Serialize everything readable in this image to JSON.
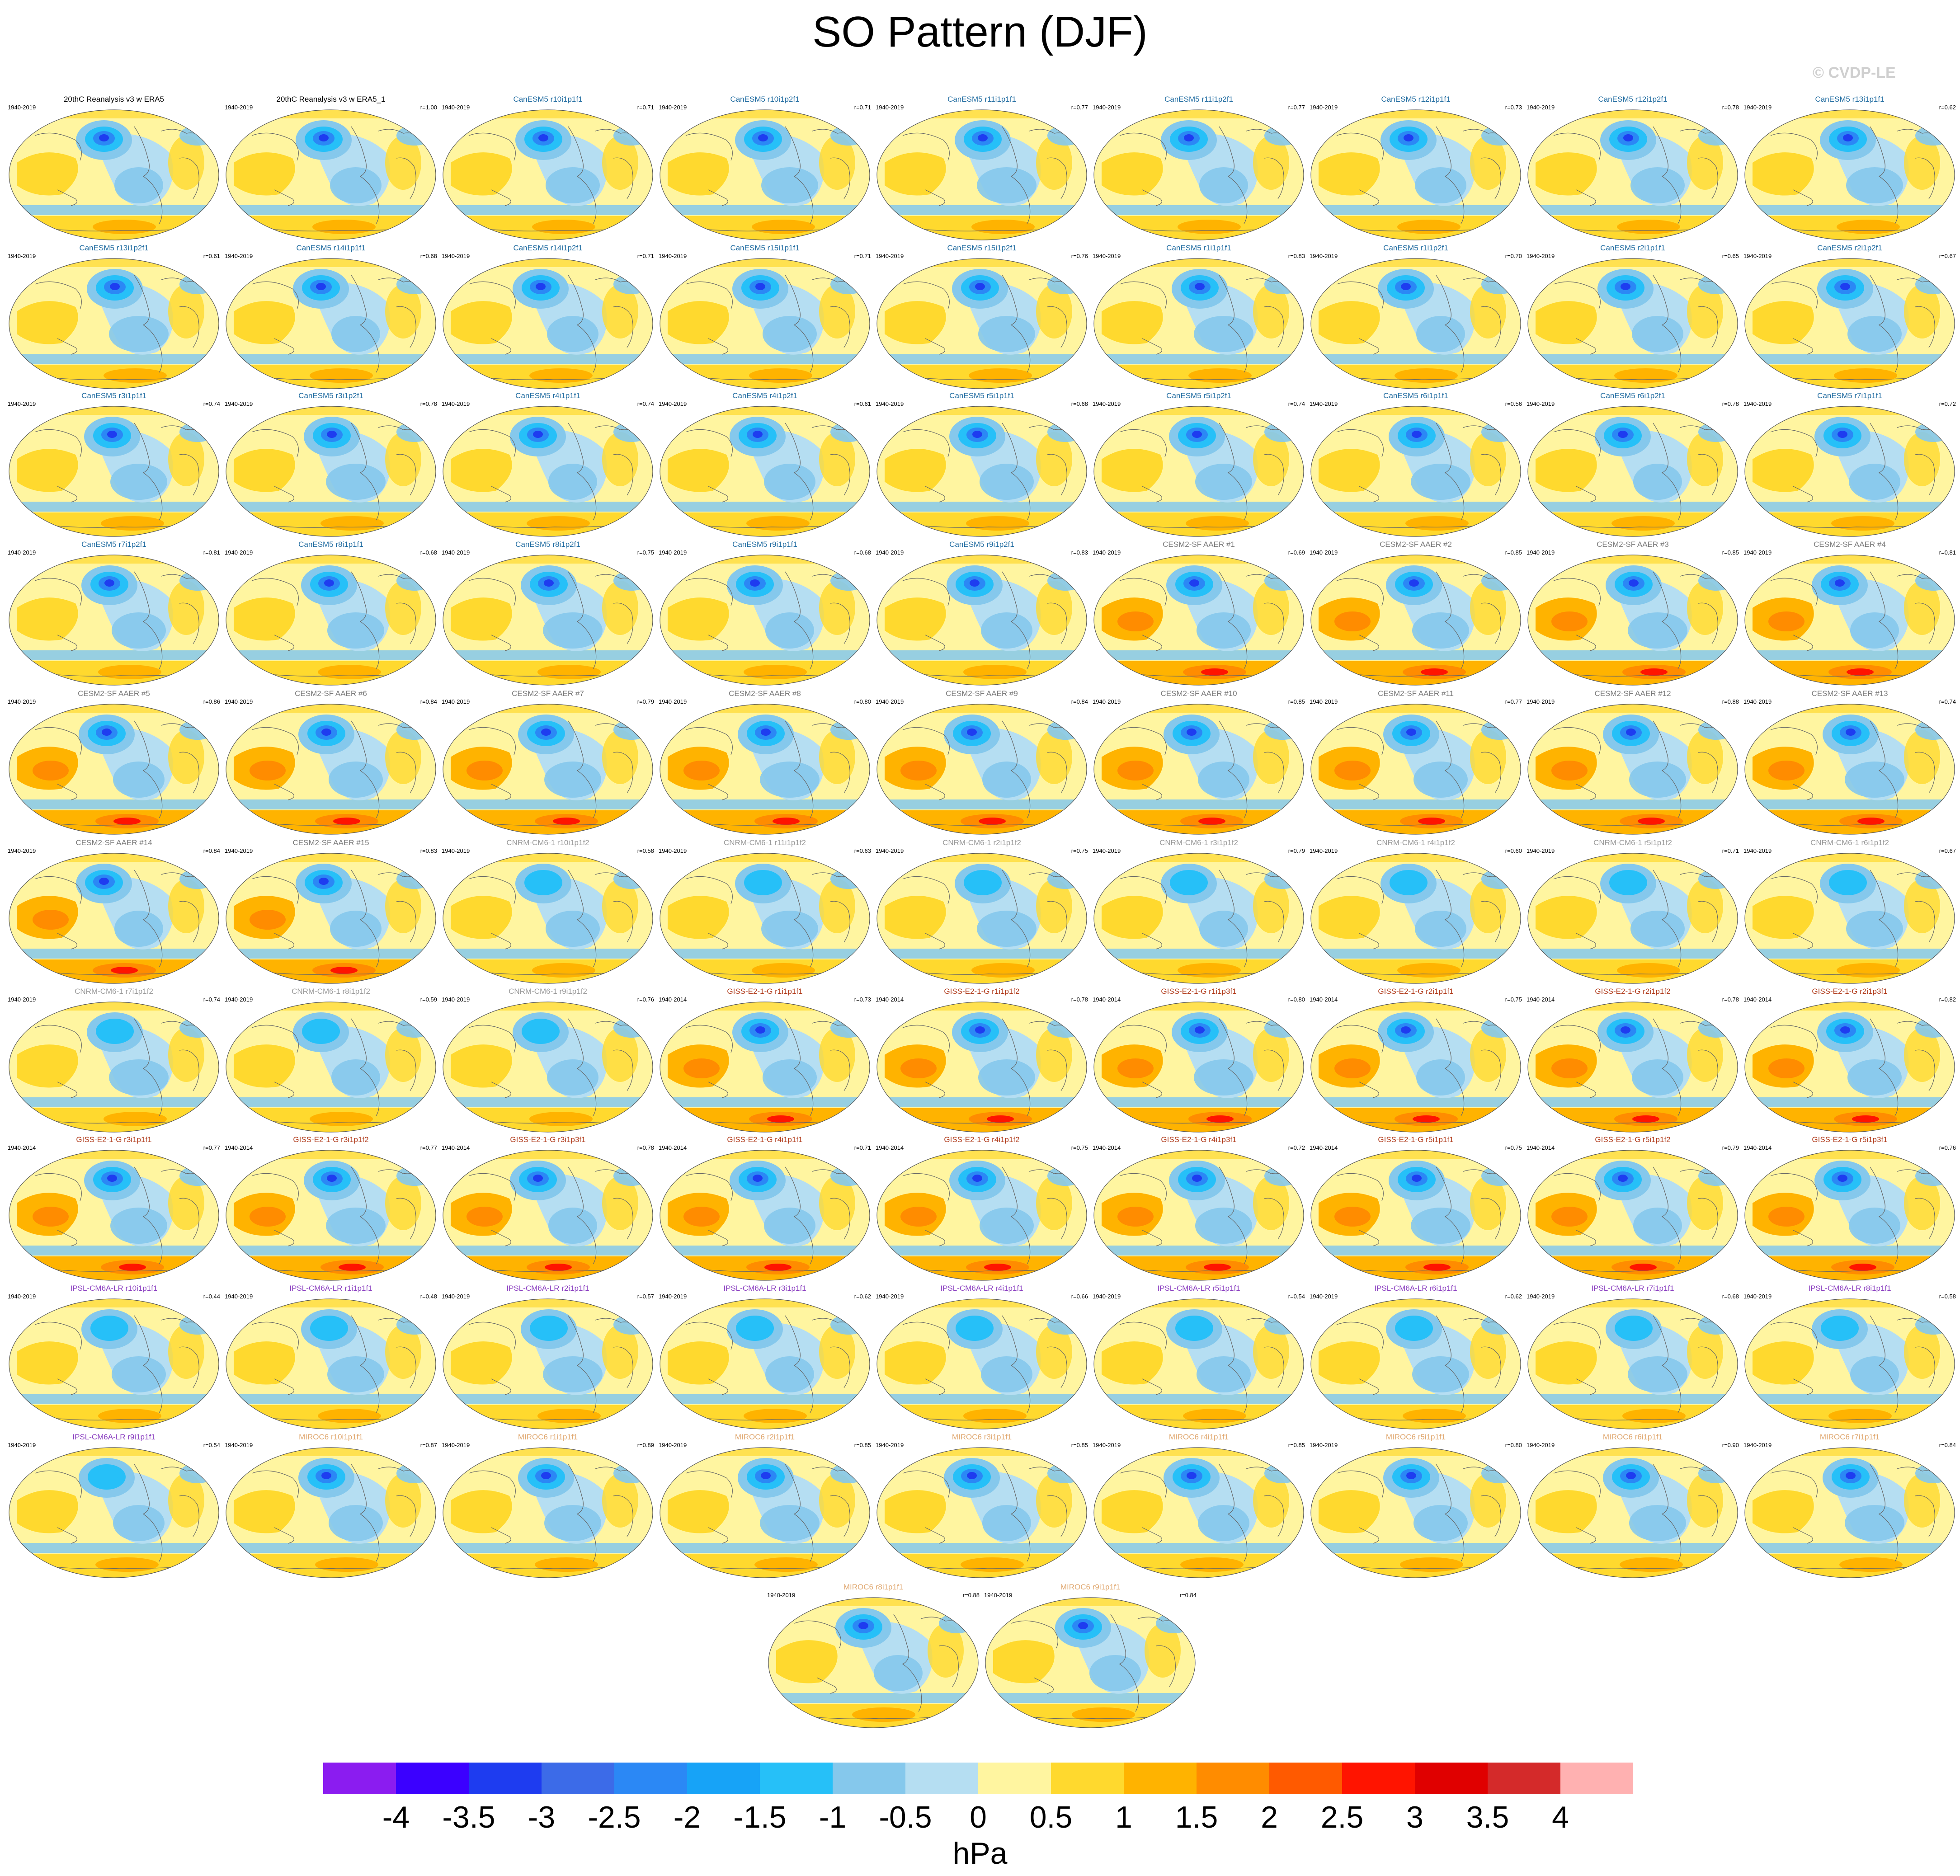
{
  "title": "SO Pattern (DJF)",
  "copyright": "© CVDP-LE",
  "colorbar": {
    "units": "hPa",
    "labels": [
      "-4",
      "-3.5",
      "-3",
      "-2.5",
      "-2",
      "-1.5",
      "-1",
      "-0.5",
      "0",
      "0.5",
      "1",
      "1.5",
      "2",
      "2.5",
      "3",
      "3.5",
      "4"
    ],
    "colors": [
      "#8b1cf0",
      "#3b00ff",
      "#1e3cf0",
      "#3c6be8",
      "#2b88f5",
      "#17a3f7",
      "#26c0f8",
      "#85c8ec",
      "#b5def2",
      "#fff5a0",
      "#ffd92e",
      "#ffb300",
      "#ff8c00",
      "#ff5a00",
      "#ff1400",
      "#e00000",
      "#d42a2a",
      "#ffb1b1"
    ]
  },
  "group_colors": {
    "obs": "#000000",
    "CanESM5": "#1f6ba0",
    "CESM2-SF AAER": "#7a7a7a",
    "CNRM-CM6-1": "#9a9a9a",
    "GISS-E2-1-G": "#b03a1a",
    "IPSL-CM6A-LR": "#8a3ec0",
    "MIROC6": "#e0a870"
  },
  "panels": [
    {
      "title": "20thC Reanalysis v3 w ERA5",
      "group": "obs",
      "years": "1940-2019",
      "corr": ""
    },
    {
      "title": "20thC Reanalysis v3 w ERA5_1",
      "group": "obs",
      "years": "1940-2019",
      "corr": "r=1.00"
    },
    {
      "title": "CanESM5 r10i1p1f1",
      "group": "CanESM5",
      "years": "1940-2019",
      "corr": "r=0.71"
    },
    {
      "title": "CanESM5 r10i1p2f1",
      "group": "CanESM5",
      "years": "1940-2019",
      "corr": "r=0.71"
    },
    {
      "title": "CanESM5 r11i1p1f1",
      "group": "CanESM5",
      "years": "1940-2019",
      "corr": "r=0.77"
    },
    {
      "title": "CanESM5 r11i1p2f1",
      "group": "CanESM5",
      "years": "1940-2019",
      "corr": "r=0.77"
    },
    {
      "title": "CanESM5 r12i1p1f1",
      "group": "CanESM5",
      "years": "1940-2019",
      "corr": "r=0.73"
    },
    {
      "title": "CanESM5 r12i1p2f1",
      "group": "CanESM5",
      "years": "1940-2019",
      "corr": "r=0.78"
    },
    {
      "title": "CanESM5 r13i1p1f1",
      "group": "CanESM5",
      "years": "1940-2019",
      "corr": "r=0.62"
    },
    {
      "title": "CanESM5 r13i1p2f1",
      "group": "CanESM5",
      "years": "1940-2019",
      "corr": "r=0.61"
    },
    {
      "title": "CanESM5 r14i1p1f1",
      "group": "CanESM5",
      "years": "1940-2019",
      "corr": "r=0.68"
    },
    {
      "title": "CanESM5 r14i1p2f1",
      "group": "CanESM5",
      "years": "1940-2019",
      "corr": "r=0.71"
    },
    {
      "title": "CanESM5 r15i1p1f1",
      "group": "CanESM5",
      "years": "1940-2019",
      "corr": "r=0.71"
    },
    {
      "title": "CanESM5 r15i1p2f1",
      "group": "CanESM5",
      "years": "1940-2019",
      "corr": "r=0.76"
    },
    {
      "title": "CanESM5 r1i1p1f1",
      "group": "CanESM5",
      "years": "1940-2019",
      "corr": "r=0.83"
    },
    {
      "title": "CanESM5 r1i1p2f1",
      "group": "CanESM5",
      "years": "1940-2019",
      "corr": "r=0.70"
    },
    {
      "title": "CanESM5 r2i1p1f1",
      "group": "CanESM5",
      "years": "1940-2019",
      "corr": "r=0.65"
    },
    {
      "title": "CanESM5 r2i1p2f1",
      "group": "CanESM5",
      "years": "1940-2019",
      "corr": "r=0.67"
    },
    {
      "title": "CanESM5 r3i1p1f1",
      "group": "CanESM5",
      "years": "1940-2019",
      "corr": "r=0.74"
    },
    {
      "title": "CanESM5 r3i1p2f1",
      "group": "CanESM5",
      "years": "1940-2019",
      "corr": "r=0.78"
    },
    {
      "title": "CanESM5 r4i1p1f1",
      "group": "CanESM5",
      "years": "1940-2019",
      "corr": "r=0.74"
    },
    {
      "title": "CanESM5 r4i1p2f1",
      "group": "CanESM5",
      "years": "1940-2019",
      "corr": "r=0.61"
    },
    {
      "title": "CanESM5 r5i1p1f1",
      "group": "CanESM5",
      "years": "1940-2019",
      "corr": "r=0.68"
    },
    {
      "title": "CanESM5 r5i1p2f1",
      "group": "CanESM5",
      "years": "1940-2019",
      "corr": "r=0.74"
    },
    {
      "title": "CanESM5 r6i1p1f1",
      "group": "CanESM5",
      "years": "1940-2019",
      "corr": "r=0.56"
    },
    {
      "title": "CanESM5 r6i1p2f1",
      "group": "CanESM5",
      "years": "1940-2019",
      "corr": "r=0.78"
    },
    {
      "title": "CanESM5 r7i1p1f1",
      "group": "CanESM5",
      "years": "1940-2019",
      "corr": "r=0.72"
    },
    {
      "title": "CanESM5 r7i1p2f1",
      "group": "CanESM5",
      "years": "1940-2019",
      "corr": "r=0.81"
    },
    {
      "title": "CanESM5 r8i1p1f1",
      "group": "CanESM5",
      "years": "1940-2019",
      "corr": "r=0.68"
    },
    {
      "title": "CanESM5 r8i1p2f1",
      "group": "CanESM5",
      "years": "1940-2019",
      "corr": "r=0.75"
    },
    {
      "title": "CanESM5 r9i1p1f1",
      "group": "CanESM5",
      "years": "1940-2019",
      "corr": "r=0.68"
    },
    {
      "title": "CanESM5 r9i1p2f1",
      "group": "CanESM5",
      "years": "1940-2019",
      "corr": "r=0.83"
    },
    {
      "title": "CESM2-SF AAER #1",
      "group": "CESM2-SF AAER",
      "years": "1940-2019",
      "corr": "r=0.69"
    },
    {
      "title": "CESM2-SF AAER #2",
      "group": "CESM2-SF AAER",
      "years": "1940-2019",
      "corr": "r=0.85"
    },
    {
      "title": "CESM2-SF AAER #3",
      "group": "CESM2-SF AAER",
      "years": "1940-2019",
      "corr": "r=0.85"
    },
    {
      "title": "CESM2-SF AAER #4",
      "group": "CESM2-SF AAER",
      "years": "1940-2019",
      "corr": "r=0.81"
    },
    {
      "title": "CESM2-SF AAER #5",
      "group": "CESM2-SF AAER",
      "years": "1940-2019",
      "corr": "r=0.86"
    },
    {
      "title": "CESM2-SF AAER #6",
      "group": "CESM2-SF AAER",
      "years": "1940-2019",
      "corr": "r=0.84"
    },
    {
      "title": "CESM2-SF AAER #7",
      "group": "CESM2-SF AAER",
      "years": "1940-2019",
      "corr": "r=0.79"
    },
    {
      "title": "CESM2-SF AAER #8",
      "group": "CESM2-SF AAER",
      "years": "1940-2019",
      "corr": "r=0.80"
    },
    {
      "title": "CESM2-SF AAER #9",
      "group": "CESM2-SF AAER",
      "years": "1940-2019",
      "corr": "r=0.84"
    },
    {
      "title": "CESM2-SF AAER #10",
      "group": "CESM2-SF AAER",
      "years": "1940-2019",
      "corr": "r=0.85"
    },
    {
      "title": "CESM2-SF AAER #11",
      "group": "CESM2-SF AAER",
      "years": "1940-2019",
      "corr": "r=0.77"
    },
    {
      "title": "CESM2-SF AAER #12",
      "group": "CESM2-SF AAER",
      "years": "1940-2019",
      "corr": "r=0.88"
    },
    {
      "title": "CESM2-SF AAER #13",
      "group": "CESM2-SF AAER",
      "years": "1940-2019",
      "corr": "r=0.74"
    },
    {
      "title": "CESM2-SF AAER #14",
      "group": "CESM2-SF AAER",
      "years": "1940-2019",
      "corr": "r=0.84"
    },
    {
      "title": "CESM2-SF AAER #15",
      "group": "CESM2-SF AAER",
      "years": "1940-2019",
      "corr": "r=0.83"
    },
    {
      "title": "CNRM-CM6-1 r10i1p1f2",
      "group": "CNRM-CM6-1",
      "years": "1940-2019",
      "corr": "r=0.58"
    },
    {
      "title": "CNRM-CM6-1 r11i1p1f2",
      "group": "CNRM-CM6-1",
      "years": "1940-2019",
      "corr": "r=0.63"
    },
    {
      "title": "CNRM-CM6-1 r2i1p1f2",
      "group": "CNRM-CM6-1",
      "years": "1940-2019",
      "corr": "r=0.75"
    },
    {
      "title": "CNRM-CM6-1 r3i1p1f2",
      "group": "CNRM-CM6-1",
      "years": "1940-2019",
      "corr": "r=0.79"
    },
    {
      "title": "CNRM-CM6-1 r4i1p1f2",
      "group": "CNRM-CM6-1",
      "years": "1940-2019",
      "corr": "r=0.60"
    },
    {
      "title": "CNRM-CM6-1 r5i1p1f2",
      "group": "CNRM-CM6-1",
      "years": "1940-2019",
      "corr": "r=0.71"
    },
    {
      "title": "CNRM-CM6-1 r6i1p1f2",
      "group": "CNRM-CM6-1",
      "years": "1940-2019",
      "corr": "r=0.67"
    },
    {
      "title": "CNRM-CM6-1 r7i1p1f2",
      "group": "CNRM-CM6-1",
      "years": "1940-2019",
      "corr": "r=0.74"
    },
    {
      "title": "CNRM-CM6-1 r8i1p1f2",
      "group": "CNRM-CM6-1",
      "years": "1940-2019",
      "corr": "r=0.59"
    },
    {
      "title": "CNRM-CM6-1 r9i1p1f2",
      "group": "CNRM-CM6-1",
      "years": "1940-2019",
      "corr": "r=0.76"
    },
    {
      "title": "GISS-E2-1-G r1i1p1f1",
      "group": "GISS-E2-1-G",
      "years": "1940-2014",
      "corr": "r=0.73"
    },
    {
      "title": "GISS-E2-1-G r1i1p1f2",
      "group": "GISS-E2-1-G",
      "years": "1940-2014",
      "corr": "r=0.78"
    },
    {
      "title": "GISS-E2-1-G r1i1p3f1",
      "group": "GISS-E2-1-G",
      "years": "1940-2014",
      "corr": "r=0.80"
    },
    {
      "title": "GISS-E2-1-G r2i1p1f1",
      "group": "GISS-E2-1-G",
      "years": "1940-2014",
      "corr": "r=0.75"
    },
    {
      "title": "GISS-E2-1-G r2i1p1f2",
      "group": "GISS-E2-1-G",
      "years": "1940-2014",
      "corr": "r=0.78"
    },
    {
      "title": "GISS-E2-1-G r2i1p3f1",
      "group": "GISS-E2-1-G",
      "years": "1940-2014",
      "corr": "r=0.82"
    },
    {
      "title": "GISS-E2-1-G r3i1p1f1",
      "group": "GISS-E2-1-G",
      "years": "1940-2014",
      "corr": "r=0.77"
    },
    {
      "title": "GISS-E2-1-G r3i1p1f2",
      "group": "GISS-E2-1-G",
      "years": "1940-2014",
      "corr": "r=0.77"
    },
    {
      "title": "GISS-E2-1-G r3i1p3f1",
      "group": "GISS-E2-1-G",
      "years": "1940-2014",
      "corr": "r=0.78"
    },
    {
      "title": "GISS-E2-1-G r4i1p1f1",
      "group": "GISS-E2-1-G",
      "years": "1940-2014",
      "corr": "r=0.71"
    },
    {
      "title": "GISS-E2-1-G r4i1p1f2",
      "group": "GISS-E2-1-G",
      "years": "1940-2014",
      "corr": "r=0.75"
    },
    {
      "title": "GISS-E2-1-G r4i1p3f1",
      "group": "GISS-E2-1-G",
      "years": "1940-2014",
      "corr": "r=0.72"
    },
    {
      "title": "GISS-E2-1-G r5i1p1f1",
      "group": "GISS-E2-1-G",
      "years": "1940-2014",
      "corr": "r=0.75"
    },
    {
      "title": "GISS-E2-1-G r5i1p1f2",
      "group": "GISS-E2-1-G",
      "years": "1940-2014",
      "corr": "r=0.79"
    },
    {
      "title": "GISS-E2-1-G r5i1p3f1",
      "group": "GISS-E2-1-G",
      "years": "1940-2014",
      "corr": "r=0.76"
    },
    {
      "title": "IPSL-CM6A-LR r10i1p1f1",
      "group": "IPSL-CM6A-LR",
      "years": "1940-2019",
      "corr": "r=0.44"
    },
    {
      "title": "IPSL-CM6A-LR r1i1p1f1",
      "group": "IPSL-CM6A-LR",
      "years": "1940-2019",
      "corr": "r=0.48"
    },
    {
      "title": "IPSL-CM6A-LR r2i1p1f1",
      "group": "IPSL-CM6A-LR",
      "years": "1940-2019",
      "corr": "r=0.57"
    },
    {
      "title": "IPSL-CM6A-LR r3i1p1f1",
      "group": "IPSL-CM6A-LR",
      "years": "1940-2019",
      "corr": "r=0.62"
    },
    {
      "title": "IPSL-CM6A-LR r4i1p1f1",
      "group": "IPSL-CM6A-LR",
      "years": "1940-2019",
      "corr": "r=0.66"
    },
    {
      "title": "IPSL-CM6A-LR r5i1p1f1",
      "group": "IPSL-CM6A-LR",
      "years": "1940-2019",
      "corr": "r=0.54"
    },
    {
      "title": "IPSL-CM6A-LR r6i1p1f1",
      "group": "IPSL-CM6A-LR",
      "years": "1940-2019",
      "corr": "r=0.62"
    },
    {
      "title": "IPSL-CM6A-LR r7i1p1f1",
      "group": "IPSL-CM6A-LR",
      "years": "1940-2019",
      "corr": "r=0.68"
    },
    {
      "title": "IPSL-CM6A-LR r8i1p1f1",
      "group": "IPSL-CM6A-LR",
      "years": "1940-2019",
      "corr": "r=0.58"
    },
    {
      "title": "IPSL-CM6A-LR r9i1p1f1",
      "group": "IPSL-CM6A-LR",
      "years": "1940-2019",
      "corr": "r=0.54"
    },
    {
      "title": "MIROC6 r10i1p1f1",
      "group": "MIROC6",
      "years": "1940-2019",
      "corr": "r=0.87"
    },
    {
      "title": "MIROC6 r1i1p1f1",
      "group": "MIROC6",
      "years": "1940-2019",
      "corr": "r=0.89"
    },
    {
      "title": "MIROC6 r2i1p1f1",
      "group": "MIROC6",
      "years": "1940-2019",
      "corr": "r=0.85"
    },
    {
      "title": "MIROC6 r3i1p1f1",
      "group": "MIROC6",
      "years": "1940-2019",
      "corr": "r=0.85"
    },
    {
      "title": "MIROC6 r4i1p1f1",
      "group": "MIROC6",
      "years": "1940-2019",
      "corr": "r=0.85"
    },
    {
      "title": "MIROC6 r5i1p1f1",
      "group": "MIROC6",
      "years": "1940-2019",
      "corr": "r=0.80"
    },
    {
      "title": "MIROC6 r6i1p1f1",
      "group": "MIROC6",
      "years": "1940-2019",
      "corr": "r=0.90"
    },
    {
      "title": "MIROC6 r7i1p1f1",
      "group": "MIROC6",
      "years": "1940-2019",
      "corr": "r=0.84"
    },
    {
      "title": "MIROC6 r8i1p1f1",
      "group": "MIROC6",
      "years": "1940-2019",
      "corr": "r=0.88"
    },
    {
      "title": "MIROC6 r9i1p1f1",
      "group": "MIROC6",
      "years": "1940-2019",
      "corr": "r=0.84"
    }
  ]
}
